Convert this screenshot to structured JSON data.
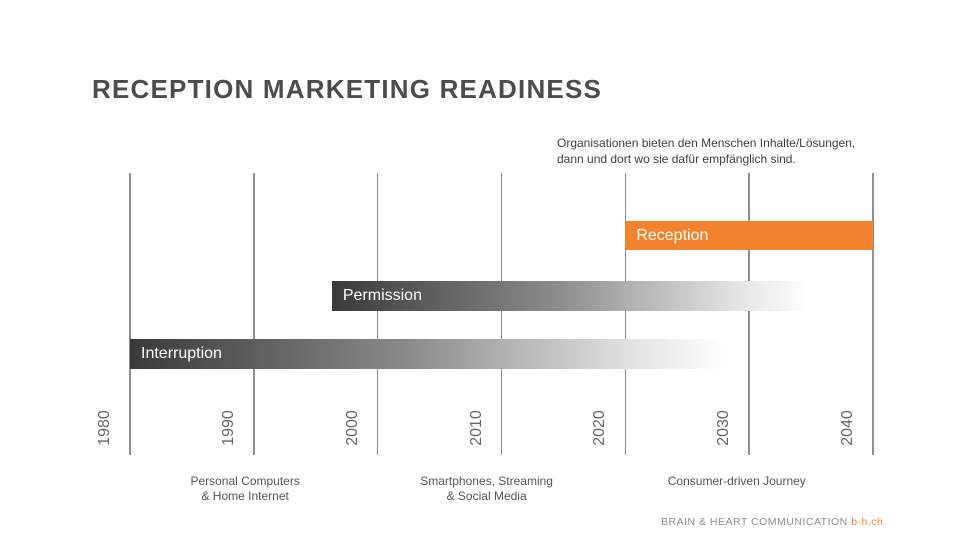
{
  "title": "RECEPTION MARKETING READINESS",
  "annotation": {
    "lines": [
      "Organisationen bieten den Menschen Inhalte/Lösungen,",
      "dann und dort wo sie dafür empfänglich sind."
    ]
  },
  "chart_data": {
    "type": "bar",
    "subtype": "horizontal-timeline",
    "title": "Reception Marketing Readiness",
    "x_axis": {
      "min": 1980,
      "max": 2040,
      "ticks": [
        1980,
        1990,
        2000,
        2010,
        2020,
        2030,
        2040
      ]
    },
    "bars": [
      {
        "label": "Reception",
        "start": 2020,
        "end": 2040,
        "fill": "orange"
      },
      {
        "label": "Permission",
        "start": 1996.3,
        "end": 2036,
        "fill": "gray-gradient"
      },
      {
        "label": "Interruption",
        "start": 1980,
        "end": 2029.6,
        "fill": "gray-gradient"
      }
    ],
    "milestones": [
      {
        "center_year": 1989.3,
        "lines": [
          "Personal Computers",
          "& Home Internet"
        ]
      },
      {
        "center_year": 2008.8,
        "lines": [
          "Smartphones, Streaming",
          "& Social Media"
        ]
      },
      {
        "center_year": 2029.0,
        "lines": [
          "Consumer-driven Journey"
        ]
      }
    ],
    "legend": "none",
    "grid": "vertical-decade-lines"
  },
  "footer": {
    "brand": "BRAIN & HEART COMMUNICATION",
    "link": "b-h.ch"
  },
  "colors": {
    "accent_orange": "#f2822b",
    "bar_gradient_dark": "#3a3a3a",
    "title_gray": "#4c4c4c",
    "gridline_gray": "#8f8f8f"
  }
}
